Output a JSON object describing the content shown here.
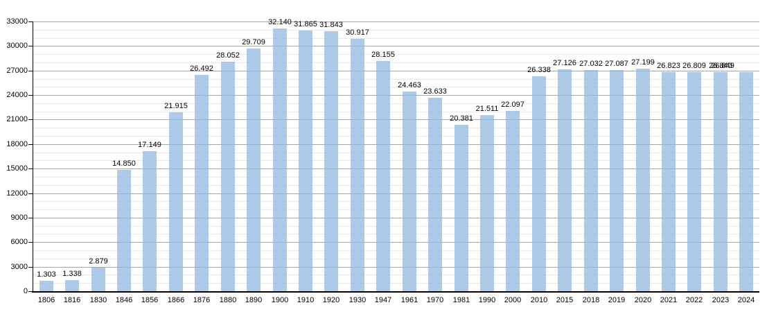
{
  "chart_data": {
    "type": "bar",
    "title": "",
    "xlabel": "",
    "ylabel": "",
    "categories": [
      "1806",
      "1816",
      "1830",
      "1846",
      "1856",
      "1866",
      "1876",
      "1880",
      "1890",
      "1900",
      "1910",
      "1920",
      "1930",
      "1947",
      "1961",
      "1970",
      "1981",
      "1990",
      "2000",
      "2010",
      "2015",
      "2018",
      "2019",
      "2020",
      "2021",
      "2022",
      "2023",
      "2024"
    ],
    "values": [
      1303,
      1338,
      2879,
      14850,
      17149,
      21915,
      26492,
      28052,
      29709,
      32140,
      31865,
      31843,
      30917,
      28155,
      24463,
      23633,
      20381,
      21511,
      22097,
      26338,
      27126,
      27032,
      27087,
      27199,
      26823,
      26809,
      26840,
      26849
    ],
    "value_labels": [
      "1.303",
      "1.338",
      "2.879",
      "14.850",
      "17.149",
      "21.915",
      "26.492",
      "28.052",
      "29.709",
      "32.140",
      "31.865",
      "31.843",
      "30.917",
      "28.155",
      "24.463",
      "23.633",
      "20.381",
      "21.511",
      "22.097",
      "26.338",
      "27.126",
      "27.032",
      "27.087",
      "27.199",
      "26.823",
      "26.809",
      "26.840",
      "26.849"
    ],
    "ylim": [
      0,
      33000
    ],
    "y_major_step": 3000,
    "y_minor_step": 1000,
    "y_tick_labels": [
      "0",
      "3000",
      "6000",
      "9000",
      "12000",
      "15000",
      "18000",
      "21000",
      "24000",
      "27000",
      "30000",
      "33000"
    ],
    "grid": "on",
    "legend_position": "none",
    "layout_hints": {
      "bar_labels_above_bars": true,
      "last_label_overlaps_previous": true
    },
    "colors": {
      "background": "#ffffff",
      "bar": "#aecbe8",
      "grid_major": "#a6a6a6",
      "grid_minor": "#e9e9e9",
      "axis": "#000000",
      "text": "#000000"
    }
  }
}
